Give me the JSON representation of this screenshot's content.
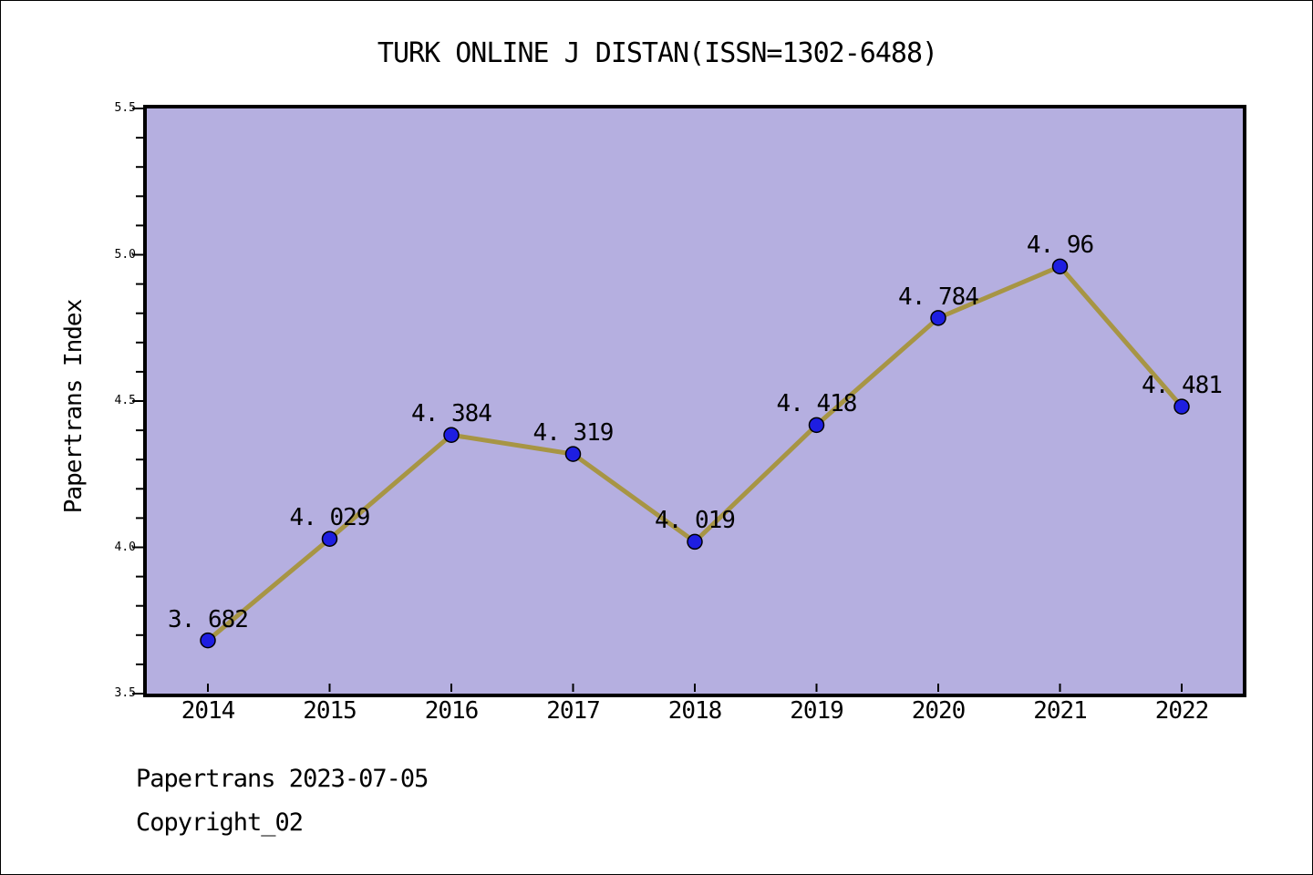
{
  "figure": {
    "title": "TURK ONLINE J DISTAN(ISSN=1302-6488)"
  },
  "footer": {
    "line1": "Papertrans 2023-07-05",
    "line2": "Copyright_02"
  },
  "chart_data": {
    "type": "line",
    "title": "TURK ONLINE J DISTAN(ISSN=1302-6488)",
    "xlabel": "",
    "ylabel": "Papertrans Index",
    "categories": [
      "2014",
      "2015",
      "2016",
      "2017",
      "2018",
      "2019",
      "2020",
      "2021",
      "2022"
    ],
    "values": [
      3.682,
      4.029,
      4.384,
      4.319,
      4.019,
      4.418,
      4.784,
      4.96,
      4.481
    ],
    "point_labels": [
      "3. 682",
      "4. 029",
      "4. 384",
      "4. 319",
      "4. 019",
      "4. 418",
      "4. 784",
      "4. 96",
      "4. 481"
    ],
    "ylim": [
      3.5,
      5.5
    ],
    "yticks": [
      "5.5",
      "5.0",
      "4.5",
      "4.0",
      "3.5"
    ],
    "ytick_values": [
      5.5,
      5.0,
      4.5,
      4.0,
      3.5
    ],
    "minor_tick_step": 0.1,
    "grid": false,
    "legend": null,
    "colors": {
      "line": "#a79544",
      "marker": "#1e1ee1",
      "marker_edge": "#000000",
      "plot_bg": "#b5afe0",
      "axis": "#000000",
      "text": "#000000"
    }
  }
}
